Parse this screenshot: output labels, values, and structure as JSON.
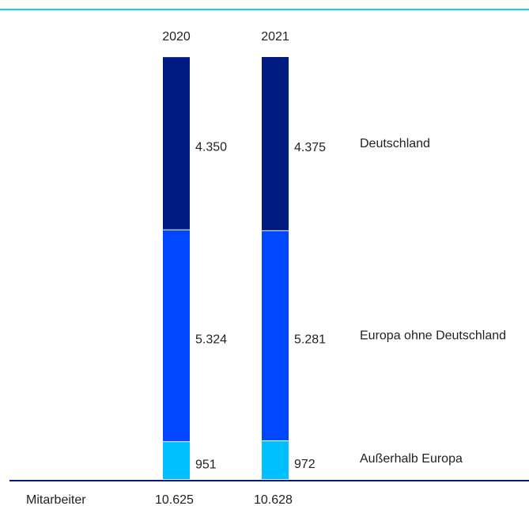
{
  "chart_data": {
    "type": "stacked_bar",
    "categories": [
      "2020",
      "2021"
    ],
    "series": [
      {
        "name": "Deutschland",
        "color": "#001a80",
        "values": [
          4350,
          4375
        ],
        "value_labels": [
          "4.350",
          "4.375"
        ]
      },
      {
        "name": "Europa ohne Deutschland",
        "color": "#0047ff",
        "values": [
          5324,
          5281
        ],
        "value_labels": [
          "5.324",
          "5.281"
        ]
      },
      {
        "name": "Außerhalb Europa",
        "color": "#00c0ff",
        "values": [
          951,
          972
        ],
        "value_labels": [
          "951",
          "972"
        ]
      }
    ],
    "total": {
      "label": "Mitarbeiter",
      "values": [
        10625,
        10628
      ],
      "value_labels": [
        "10.625",
        "10.628"
      ]
    }
  }
}
